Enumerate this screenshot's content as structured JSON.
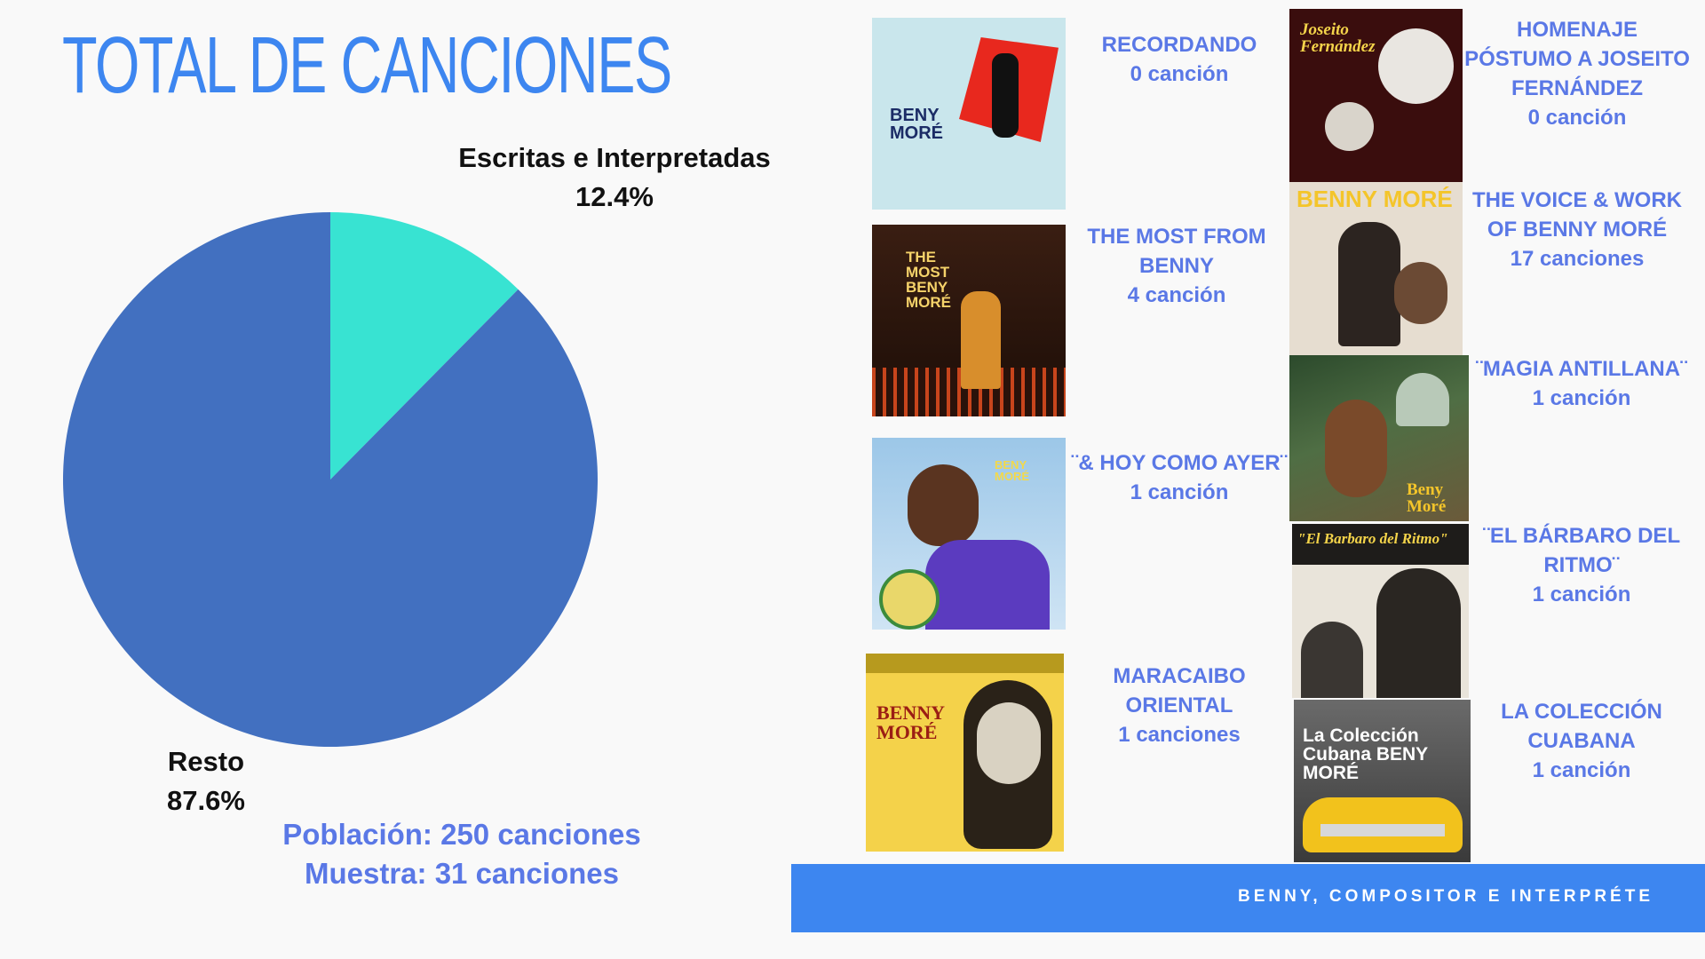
{
  "title": "TOTAL DE CANCIONES",
  "chart_data": {
    "type": "pie",
    "categories": [
      "Escritas e Interpretadas",
      "Resto"
    ],
    "values": [
      12.4,
      87.6
    ],
    "value_labels": [
      "12.4%",
      "87.6%"
    ],
    "colors": [
      "#38e3d2",
      "#4270c0"
    ],
    "title": ""
  },
  "stats": {
    "population": "Población: 250 canciones",
    "sample": "Muestra: 31 canciones"
  },
  "albums": [
    {
      "title_lines": [
        "RECORDANDO"
      ],
      "count": "0 canción",
      "cover_text": "BENY MORÉ"
    },
    {
      "title_lines": [
        "HOMENAJE",
        "PÓSTUMO A JOSEITO",
        "FERNÁNDEZ"
      ],
      "count": "0 canción",
      "cover_text": "Joseito Fernández"
    },
    {
      "title_lines": [
        "THE MOST FROM",
        "BENNY"
      ],
      "count": "4 canción",
      "cover_text": "THE MOST BENY MORÉ"
    },
    {
      "title_lines": [
        "THE VOICE & WORK",
        "OF BENNY MORÉ"
      ],
      "count": "17 canciones",
      "cover_text": "BENNY MORÉ"
    },
    {
      "title_lines": [
        "¨MAGIA ANTILLANA¨"
      ],
      "count": "1 canción",
      "cover_text": "Beny Moré"
    },
    {
      "title_lines": [
        "¨& HOY COMO AYER¨"
      ],
      "count": "1 canción",
      "cover_text": "BENY MORÉ"
    },
    {
      "title_lines": [
        "¨EL BÁRBARO DEL",
        "RITMO¨"
      ],
      "count": "1 canción",
      "cover_text": "\"El Barbaro del Ritmo\""
    },
    {
      "title_lines": [
        "MARACAIBO",
        "ORIENTAL"
      ],
      "count": "1 canciones",
      "cover_text": "BENNY MORÉ"
    },
    {
      "title_lines": [
        "LA COLECCIÓN",
        "CUABANA"
      ],
      "count": "1 canción",
      "cover_text": "La Colección Cubana BENY MORÉ"
    }
  ],
  "footer": "BENNY, COMPOSITOR E INTERPRÉTE"
}
